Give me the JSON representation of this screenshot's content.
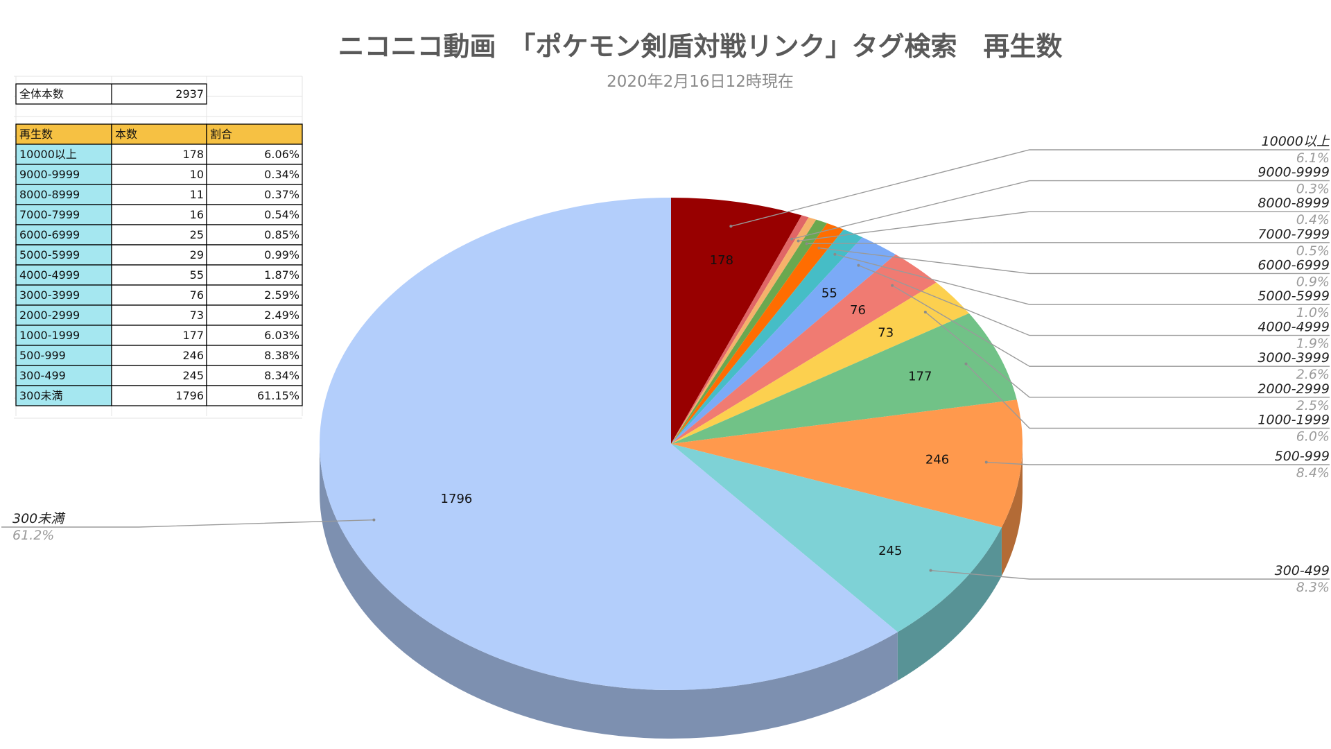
{
  "chart_data": {
    "type": "pie",
    "title": "ニコニコ動画　「ポケモン剣盾対戦リンク」タグ検索　再生数",
    "subtitle": "2020年2月16日12時現在",
    "categories": [
      "10000以上",
      "9000-9999",
      "8000-8999",
      "7000-7999",
      "6000-6999",
      "5000-5999",
      "4000-4999",
      "3000-3999",
      "2000-2999",
      "1000-1999",
      "500-999",
      "300-499",
      "300未満"
    ],
    "values": [
      178,
      10,
      11,
      16,
      25,
      29,
      55,
      76,
      73,
      177,
      246,
      245,
      1796
    ],
    "percent_labels": [
      "6.1%",
      "0.3%",
      "0.4%",
      "0.5%",
      "0.9%",
      "1.0%",
      "1.9%",
      "2.6%",
      "2.5%",
      "6.0%",
      "8.4%",
      "8.3%",
      "61.2%"
    ],
    "colors": [
      "#980000",
      "#e06666",
      "#f6b26b",
      "#6aa84f",
      "#ff6d01",
      "#46bdc6",
      "#7baaf7",
      "#f07b72",
      "#fcd04f",
      "#71c287",
      "#ff994d",
      "#7ed2d6",
      "#b3cefb"
    ],
    "legend_position": "sides",
    "three_d": true
  },
  "table": {
    "total_label": "全体本数",
    "total_value": "2937",
    "headers": [
      "再生数",
      "本数",
      "割合"
    ],
    "rows": [
      [
        "10000以上",
        "178",
        "6.06%"
      ],
      [
        "9000-9999",
        "10",
        "0.34%"
      ],
      [
        "8000-8999",
        "11",
        "0.37%"
      ],
      [
        "7000-7999",
        "16",
        "0.54%"
      ],
      [
        "6000-6999",
        "25",
        "0.85%"
      ],
      [
        "5000-5999",
        "29",
        "0.99%"
      ],
      [
        "4000-4999",
        "55",
        "1.87%"
      ],
      [
        "3000-3999",
        "76",
        "2.59%"
      ],
      [
        "2000-2999",
        "73",
        "2.49%"
      ],
      [
        "1000-1999",
        "177",
        "6.03%"
      ],
      [
        "500-999",
        "246",
        "8.38%"
      ],
      [
        "300-499",
        "245",
        "8.34%"
      ],
      [
        "300未満",
        "1796",
        "61.15%"
      ]
    ],
    "header_color": "#f6c143",
    "label_color": "#a5e7f0"
  }
}
